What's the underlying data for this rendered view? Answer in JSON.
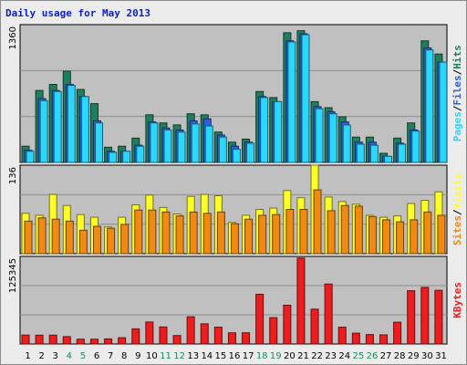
{
  "chart_data": {
    "type": "bar",
    "title": "Daily usage for May 2013",
    "categories": [
      "1",
      "2",
      "3",
      "4",
      "5",
      "6",
      "7",
      "8",
      "9",
      "10",
      "11",
      "12",
      "13",
      "14",
      "15",
      "16",
      "17",
      "18",
      "19",
      "20",
      "21",
      "22",
      "23",
      "24",
      "25",
      "26",
      "27",
      "28",
      "29",
      "30",
      "31"
    ],
    "weekend_days": [
      "4",
      "5",
      "11",
      "12",
      "18",
      "19",
      "25",
      "26"
    ],
    "colors": {
      "hits": "#1f7f5c",
      "files": "#2f5fe0",
      "pages": "#29d7ff",
      "visits": "#ffff28",
      "sites": "#f08a10",
      "kbytes": "#ee1c1c",
      "weekday_tick": "#000000",
      "weekend_tick": "#1d8a5e"
    },
    "panels": [
      {
        "id": "hits-files-pages",
        "y_max": 1360,
        "y_max_label": "1360",
        "legend": [
          {
            "text": "Pages",
            "color": "#29d7ff"
          },
          {
            "text": "/",
            "color": "#000000"
          },
          {
            "text": "Files",
            "color": "#2f5fe0"
          },
          {
            "text": "/",
            "color": "#000000"
          },
          {
            "text": "Hits",
            "color": "#1f7f5c"
          }
        ],
        "series": [
          {
            "name": "Hits",
            "values": [
              160,
              710,
              770,
              900,
              720,
              580,
              150,
              160,
              240,
              470,
              390,
              370,
              480,
              470,
              300,
              200,
              230,
              700,
              640,
              1280,
              1300,
              600,
              540,
              450,
              250,
              250,
              90,
              240,
              390,
              1200,
              1070
            ]
          },
          {
            "name": "Files",
            "values": [
              120,
              630,
              710,
              770,
              650,
              410,
              110,
              110,
              170,
              400,
              340,
              320,
              410,
              430,
              270,
              160,
              200,
              650,
              600,
              1200,
              1270,
              550,
              500,
              400,
              200,
              200,
              60,
              190,
              320,
              1130,
              990
            ]
          },
          {
            "name": "Pages",
            "values": [
              110,
              610,
              700,
              760,
              650,
              390,
              100,
              110,
              160,
              390,
              320,
              300,
              380,
              360,
              250,
              130,
              190,
              640,
              600,
              1190,
              1260,
              530,
              480,
              370,
              180,
              170,
              60,
              180,
              310,
              1110,
              990
            ]
          }
        ]
      },
      {
        "id": "visits-sites",
        "y_max": 136,
        "y_max_label": "136",
        "legend": [
          {
            "text": "Sites",
            "color": "#f08a10"
          },
          {
            "text": "/",
            "color": "#000000"
          },
          {
            "text": "Visits",
            "color": "#ffff28"
          }
        ],
        "series": [
          {
            "name": "Visits",
            "values": [
              62,
              59,
              91,
              74,
              60,
              56,
              41,
              56,
              75,
              90,
              71,
              61,
              88,
              91,
              89,
              48,
              59,
              68,
              70,
              97,
              86,
              136,
              87,
              80,
              76,
              59,
              56,
              58,
              77,
              82,
              95
            ]
          },
          {
            "name": "Sites",
            "values": [
              50,
              55,
              53,
              50,
              36,
              42,
              39,
              45,
              67,
              67,
              64,
              58,
              64,
              62,
              64,
              46,
              53,
              59,
              60,
              68,
              68,
              98,
              66,
              74,
              73,
              57,
              52,
              49,
              52,
              64,
              59
            ]
          }
        ]
      },
      {
        "id": "kbytes",
        "y_max": 125345,
        "y_max_label": "125345",
        "legend": [
          {
            "text": "KBytes",
            "color": "#ee1c1c"
          }
        ],
        "series": [
          {
            "name": "KBytes",
            "values": [
              12800,
              12600,
              12700,
              10600,
              6900,
              6900,
              7300,
              9000,
              21700,
              31500,
              24400,
              12100,
              39000,
              28900,
              24100,
              16000,
              16100,
              71200,
              37700,
              55500,
              123000,
              49900,
              85800,
              24100,
              15500,
              13500,
              13100,
              31200,
              76300,
              81000,
              76800
            ]
          }
        ]
      }
    ]
  }
}
